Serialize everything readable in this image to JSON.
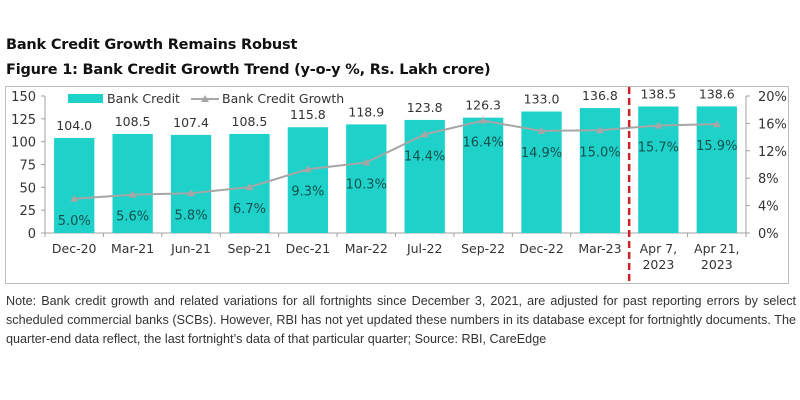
{
  "header": {
    "title": "Bank Credit Growth Remains Robust",
    "subtitle": "Figure 1: Bank Credit Growth Trend (y-o-y %, Rs. Lakh crore)"
  },
  "colors": {
    "bar": "#1ed2ca",
    "line": "#a6a6a6",
    "divider": "#d0202a",
    "axis_text": "#333333"
  },
  "chart_data": {
    "type": "bar",
    "title": "Figure 1: Bank Credit Growth Trend (y-o-y %, Rs. Lakh crore)",
    "categories": [
      "Dec-20",
      "Mar-21",
      "Jun-21",
      "Sep-21",
      "Dec-21",
      "Mar-22",
      "Jul-22",
      "Sep-22",
      "Dec-22",
      "Mar-23",
      "Apr 7, 2023",
      "Apr 21, 2023"
    ],
    "category_lines": [
      [
        "Dec-20"
      ],
      [
        "Mar-21"
      ],
      [
        "Jun-21"
      ],
      [
        "Sep-21"
      ],
      [
        "Dec-21"
      ],
      [
        "Mar-22"
      ],
      [
        "Jul-22"
      ],
      [
        "Sep-22"
      ],
      [
        "Dec-22"
      ],
      [
        "Mar-23"
      ],
      [
        "Apr 7,",
        "2023"
      ],
      [
        "Apr 21,",
        "2023"
      ]
    ],
    "series": [
      {
        "name": "Bank Credit",
        "type": "bar",
        "axis": "left",
        "values": [
          104.0,
          108.5,
          107.4,
          108.5,
          115.8,
          118.9,
          123.8,
          126.3,
          133.0,
          136.8,
          138.5,
          138.6
        ],
        "labels": [
          "104.0",
          "108.5",
          "107.4",
          "108.5",
          "115.8",
          "118.9",
          "123.8",
          "126.3",
          "133.0",
          "136.8",
          "138.5",
          "138.6"
        ]
      },
      {
        "name": "Bank Credit Growth",
        "type": "line",
        "axis": "right",
        "values": [
          5.0,
          5.6,
          5.8,
          6.7,
          9.3,
          10.3,
          14.4,
          16.4,
          14.9,
          15.0,
          15.7,
          15.9
        ],
        "labels": [
          "5.0%",
          "5.6%",
          "5.8%",
          "6.7%",
          "9.3%",
          "10.3%",
          "14.4%",
          "16.4%",
          "14.9%",
          "15.0%",
          "15.7%",
          "15.9%"
        ]
      }
    ],
    "left_axis": {
      "min": 0,
      "max": 150,
      "ticks": [
        0,
        25,
        50,
        75,
        100,
        125,
        150
      ]
    },
    "right_axis": {
      "min": 0,
      "max": 20,
      "ticks": [
        "0%",
        "4%",
        "8%",
        "12%",
        "16%",
        "20%"
      ]
    },
    "divider_after_category": "Mar-23",
    "legend": {
      "position": "top-left",
      "entries": [
        "Bank Credit",
        "Bank Credit Growth"
      ]
    },
    "grid": false
  },
  "note": "Note: Bank credit growth and related variations for all fortnights since December 3, 2021, are adjusted for past reporting errors by select scheduled commercial banks (SCBs). However, RBI has not yet updated these numbers in its database except for fortnightly documents. The quarter-end data reflect, the last fortnight’s data of that particular quarter; Source: RBI, CareEdge"
}
